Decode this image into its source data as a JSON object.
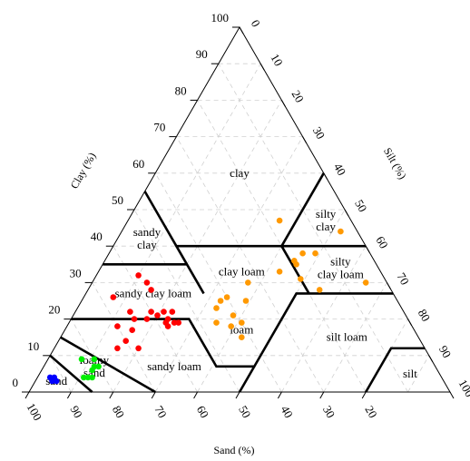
{
  "chart_data": {
    "type": "scatter",
    "subtype": "ternary-soil-texture-triangle",
    "axes": {
      "clay": {
        "label": "Clay (%)",
        "ticks": [
          0,
          10,
          20,
          30,
          40,
          50,
          60,
          70,
          80,
          90,
          100
        ]
      },
      "silt": {
        "label": "Silt (%)",
        "ticks": [
          0,
          10,
          20,
          30,
          40,
          50,
          60,
          70,
          80,
          90,
          100
        ]
      },
      "sand": {
        "label": "Sand (%)",
        "ticks": [
          100,
          90,
          80,
          70,
          60,
          50,
          40,
          30,
          20
        ]
      }
    },
    "grid": true,
    "regions": [
      {
        "name": "clay",
        "label": "clay",
        "label_at": {
          "sand": 20,
          "silt": 20,
          "clay": 60
        }
      },
      {
        "name": "sandy-clay",
        "label": "sandy\nclay",
        "label_at": {
          "sand": 51,
          "silt": 7,
          "clay": 42
        }
      },
      {
        "name": "silty-clay",
        "label": "silty\nclay",
        "label_at": {
          "sand": 6,
          "silt": 47,
          "clay": 47
        }
      },
      {
        "name": "clay-loam",
        "label": "clay loam",
        "label_at": {
          "sand": 33,
          "silt": 34,
          "clay": 33
        }
      },
      {
        "name": "silty-clay-loam",
        "label": "silty\nclay loam",
        "label_at": {
          "sand": 9,
          "silt": 57,
          "clay": 34
        }
      },
      {
        "name": "sandy-clay-loam",
        "label": "sandy clay loam",
        "label_at": {
          "sand": 57,
          "silt": 16,
          "clay": 27
        }
      },
      {
        "name": "loam",
        "label": "loam",
        "label_at": {
          "sand": 41,
          "silt": 42,
          "clay": 17
        }
      },
      {
        "name": "silt-loam",
        "label": "silt loam",
        "label_at": {
          "sand": 17,
          "silt": 68,
          "clay": 15
        }
      },
      {
        "name": "sandy-loam",
        "label": "sandy loam",
        "label_at": {
          "sand": 62,
          "silt": 31,
          "clay": 7
        }
      },
      {
        "name": "loamy-sand",
        "label": "loamy\nsand",
        "label_at": {
          "sand": 81,
          "silt": 12,
          "clay": 7
        }
      },
      {
        "name": "sand",
        "label": "sand",
        "label_at": {
          "sand": 92,
          "silt": 5,
          "clay": 3
        }
      },
      {
        "name": "silt",
        "label": "silt",
        "label_at": {
          "sand": 7,
          "silt": 88,
          "clay": 5
        }
      }
    ],
    "boundaries": [
      [
        {
          "sand": 45,
          "silt": 0,
          "clay": 55
        },
        {
          "sand": 45,
          "silt": 15,
          "clay": 40
        },
        {
          "sand": 20,
          "silt": 40,
          "clay": 40
        },
        {
          "sand": 0,
          "silt": 60,
          "clay": 40
        }
      ],
      [
        {
          "sand": 20,
          "silt": 40,
          "clay": 40
        },
        {
          "sand": 0,
          "silt": 40,
          "clay": 60
        }
      ],
      [
        {
          "sand": 65,
          "silt": 0,
          "clay": 35
        },
        {
          "sand": 45,
          "silt": 20,
          "clay": 35
        }
      ],
      [
        {
          "sand": 80,
          "silt": 0,
          "clay": 20
        },
        {
          "sand": 52,
          "silt": 28,
          "clay": 20
        },
        {
          "sand": 52,
          "silt": 41,
          "clay": 7
        },
        {
          "sand": 43,
          "silt": 50,
          "clay": 7
        },
        {
          "sand": 23,
          "silt": 50,
          "clay": 27
        },
        {
          "sand": 0,
          "silt": 73,
          "clay": 27
        }
      ],
      [
        {
          "sand": 45,
          "silt": 15,
          "clay": 40
        },
        {
          "sand": 45,
          "silt": 28,
          "clay": 27
        }
      ],
      [
        {
          "sand": 20,
          "silt": 40,
          "clay": 40
        },
        {
          "sand": 20,
          "silt": 53,
          "clay": 27
        }
      ],
      [
        {
          "sand": 43,
          "silt": 50,
          "clay": 7
        },
        {
          "sand": 50,
          "silt": 50,
          "clay": 0
        }
      ],
      [
        {
          "sand": 20,
          "silt": 80,
          "clay": 0
        },
        {
          "sand": 8,
          "silt": 80,
          "clay": 12
        },
        {
          "sand": 0,
          "silt": 88,
          "clay": 12
        }
      ],
      [
        {
          "sand": 85,
          "silt": 0,
          "clay": 15
        },
        {
          "sand": 70,
          "silt": 30,
          "clay": 0
        }
      ],
      [
        {
          "sand": 90,
          "silt": 0,
          "clay": 10
        },
        {
          "sand": 85,
          "silt": 15,
          "clay": 0
        }
      ]
    ],
    "series": [
      {
        "color": "#ff0000",
        "points": [
          {
            "sand": 58,
            "silt": 10,
            "clay": 32
          },
          {
            "sand": 57,
            "silt": 13,
            "clay": 30
          },
          {
            "sand": 57,
            "silt": 15,
            "clay": 28
          },
          {
            "sand": 67,
            "silt": 7,
            "clay": 26
          },
          {
            "sand": 65,
            "silt": 13,
            "clay": 22
          },
          {
            "sand": 70,
            "silt": 12,
            "clay": 18
          },
          {
            "sand": 65,
            "silt": 15,
            "clay": 20
          },
          {
            "sand": 67,
            "silt": 16,
            "clay": 17
          },
          {
            "sand": 62,
            "silt": 18,
            "clay": 20
          },
          {
            "sand": 59,
            "silt": 20,
            "clay": 21
          },
          {
            "sand": 60,
            "silt": 18,
            "clay": 22
          },
          {
            "sand": 57,
            "silt": 21,
            "clay": 22
          },
          {
            "sand": 55,
            "silt": 23,
            "clay": 22
          },
          {
            "sand": 58,
            "silt": 24,
            "clay": 18
          },
          {
            "sand": 56,
            "silt": 25,
            "clay": 19
          },
          {
            "sand": 55,
            "silt": 26,
            "clay": 19
          },
          {
            "sand": 57,
            "silt": 23,
            "clay": 20
          },
          {
            "sand": 58,
            "silt": 23,
            "clay": 19
          },
          {
            "sand": 70,
            "silt": 16,
            "clay": 14
          },
          {
            "sand": 73,
            "silt": 15,
            "clay": 12
          },
          {
            "sand": 68,
            "silt": 20,
            "clay": 12
          }
        ]
      },
      {
        "color": "#ff9900",
        "points": [
          {
            "sand": 4,
            "silt": 52,
            "clay": 44
          },
          {
            "sand": 17,
            "silt": 36,
            "clay": 47
          },
          {
            "sand": 19,
            "silt": 45,
            "clay": 36
          },
          {
            "sand": 16,
            "silt": 46,
            "clay": 38
          },
          {
            "sand": 13,
            "silt": 49,
            "clay": 38
          },
          {
            "sand": 24,
            "silt": 43,
            "clay": 33
          },
          {
            "sand": 19,
            "silt": 46,
            "clay": 35
          },
          {
            "sand": 20,
            "silt": 49,
            "clay": 31
          },
          {
            "sand": 17,
            "silt": 55,
            "clay": 28
          },
          {
            "sand": 5,
            "silt": 65,
            "clay": 30
          },
          {
            "sand": 33,
            "silt": 37,
            "clay": 30
          },
          {
            "sand": 40,
            "silt": 34,
            "clay": 26
          },
          {
            "sand": 42,
            "silt": 33,
            "clay": 25
          },
          {
            "sand": 36,
            "silt": 39,
            "clay": 25
          },
          {
            "sand": 44,
            "silt": 33,
            "clay": 23
          },
          {
            "sand": 41,
            "silt": 38,
            "clay": 21
          },
          {
            "sand": 46,
            "silt": 35,
            "clay": 19
          },
          {
            "sand": 40,
            "silt": 41,
            "clay": 19
          },
          {
            "sand": 43,
            "silt": 39,
            "clay": 18
          },
          {
            "sand": 42,
            "silt": 43,
            "clay": 15
          }
        ]
      },
      {
        "color": "#00ee00",
        "points": [
          {
            "sand": 83,
            "silt": 8,
            "clay": 9
          },
          {
            "sand": 80,
            "silt": 11,
            "clay": 9
          },
          {
            "sand": 81,
            "silt": 12,
            "clay": 7
          },
          {
            "sand": 82,
            "silt": 12,
            "clay": 6
          },
          {
            "sand": 80,
            "silt": 13,
            "clay": 7
          },
          {
            "sand": 84,
            "silt": 12,
            "clay": 4
          },
          {
            "sand": 85,
            "silt": 11,
            "clay": 4
          },
          {
            "sand": 83,
            "silt": 13,
            "clay": 4
          }
        ]
      },
      {
        "color": "#0000ff",
        "points": [
          {
            "sand": 93,
            "silt": 4,
            "clay": 3
          },
          {
            "sand": 92,
            "silt": 5,
            "clay": 3
          },
          {
            "sand": 92,
            "silt": 4,
            "clay": 4
          },
          {
            "sand": 93,
            "silt": 3,
            "clay": 4
          }
        ]
      }
    ]
  }
}
